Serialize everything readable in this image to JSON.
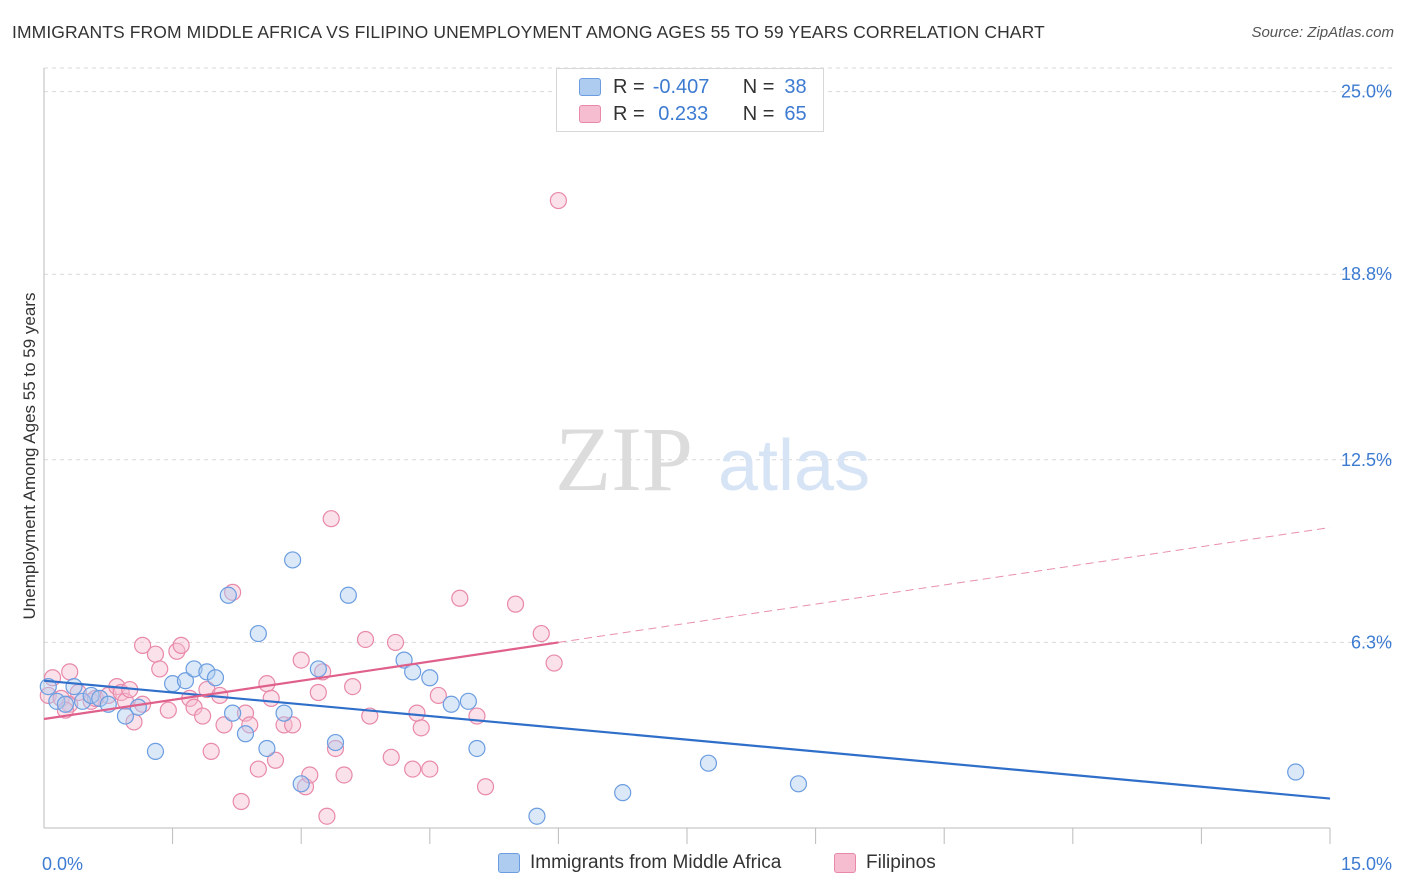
{
  "title": "IMMIGRANTS FROM MIDDLE AFRICA VS FILIPINO UNEMPLOYMENT AMONG AGES 55 TO 59 YEARS CORRELATION CHART",
  "source": "Source: ZipAtlas.com",
  "watermark": {
    "zip": "ZIP",
    "atlas": "atlas"
  },
  "legend": {
    "rows": [
      {
        "r_label": "R =",
        "r_value": "-0.407",
        "n_label": "N =",
        "n_value": "38"
      },
      {
        "r_label": "R =",
        "r_value": " 0.233",
        "n_label": "N =",
        "n_value": "65"
      }
    ]
  },
  "colors": {
    "blue_fill": "#aecbf0",
    "blue_stroke": "#6b9de0",
    "blue_line": "#2f6fc9",
    "pink_fill": "#f6bcd0",
    "pink_stroke": "#e889aa",
    "pink_line": "#e0608c",
    "tick_label": "#3d7bd1",
    "grid": "#d9d9d9"
  },
  "chart_data": {
    "type": "scatter",
    "title": "IMMIGRANTS FROM MIDDLE AFRICA VS FILIPINO UNEMPLOYMENT AMONG AGES 55 TO 59 YEARS CORRELATION CHART",
    "xlabel": "",
    "ylabel": "Unemployment Among Ages 55 to 59 years",
    "xlim": [
      0,
      15
    ],
    "ylim": [
      0,
      25.8
    ],
    "x_tick_labels": [
      "0.0%",
      "15.0%"
    ],
    "y_ticks": [
      6.3,
      12.5,
      18.8,
      25.0
    ],
    "y_tick_labels": [
      "6.3%",
      "12.5%",
      "18.8%",
      "25.0%"
    ],
    "grid": true,
    "legend_position": "bottom",
    "series": [
      {
        "name": "Immigrants from Middle Africa",
        "color": "#aecbf0",
        "r": -0.407,
        "n": 38,
        "trend": {
          "x0": 0,
          "y0": 5.0,
          "x1": 15,
          "y1": 1.0
        },
        "points": [
          [
            0.05,
            4.8
          ],
          [
            0.15,
            4.3
          ],
          [
            0.25,
            4.2
          ],
          [
            0.35,
            4.8
          ],
          [
            0.45,
            4.3
          ],
          [
            0.55,
            4.5
          ],
          [
            0.65,
            4.4
          ],
          [
            0.75,
            4.2
          ],
          [
            0.95,
            3.8
          ],
          [
            1.1,
            4.1
          ],
          [
            1.3,
            2.6
          ],
          [
            1.5,
            4.9
          ],
          [
            1.65,
            5.0
          ],
          [
            1.75,
            5.4
          ],
          [
            1.9,
            5.3
          ],
          [
            2.0,
            5.1
          ],
          [
            2.15,
            7.9
          ],
          [
            2.2,
            3.9
          ],
          [
            2.35,
            3.2
          ],
          [
            2.5,
            6.6
          ],
          [
            2.6,
            2.7
          ],
          [
            2.8,
            3.9
          ],
          [
            2.9,
            9.1
          ],
          [
            3.0,
            1.5
          ],
          [
            3.2,
            5.4
          ],
          [
            3.4,
            2.9
          ],
          [
            3.55,
            7.9
          ],
          [
            4.2,
            5.7
          ],
          [
            4.3,
            5.3
          ],
          [
            4.5,
            5.1
          ],
          [
            4.75,
            4.2
          ],
          [
            4.95,
            4.3
          ],
          [
            5.05,
            2.7
          ],
          [
            5.75,
            0.4
          ],
          [
            6.75,
            1.2
          ],
          [
            7.75,
            2.2
          ],
          [
            8.8,
            1.5
          ],
          [
            14.6,
            1.9
          ]
        ]
      },
      {
        "name": "Filipinos",
        "color": "#f6bcd0",
        "r": 0.233,
        "n": 65,
        "trend_solid": {
          "x0": 0,
          "y0": 3.7,
          "x1": 6.0,
          "y1": 6.3
        },
        "trend_dashed": {
          "x0": 6.0,
          "y0": 6.3,
          "x1": 15,
          "y1": 10.2
        },
        "points": [
          [
            0.05,
            4.5
          ],
          [
            0.2,
            4.4
          ],
          [
            0.3,
            4.2
          ],
          [
            0.3,
            5.3
          ],
          [
            0.4,
            4.6
          ],
          [
            0.55,
            4.3
          ],
          [
            0.6,
            4.4
          ],
          [
            0.75,
            4.5
          ],
          [
            0.85,
            4.8
          ],
          [
            0.9,
            4.6
          ],
          [
            0.95,
            4.3
          ],
          [
            1.0,
            4.7
          ],
          [
            1.05,
            3.6
          ],
          [
            1.15,
            4.2
          ],
          [
            1.15,
            6.2
          ],
          [
            1.3,
            5.9
          ],
          [
            1.35,
            5.4
          ],
          [
            1.45,
            4.0
          ],
          [
            1.55,
            6.0
          ],
          [
            1.6,
            6.2
          ],
          [
            1.7,
            4.4
          ],
          [
            1.75,
            4.1
          ],
          [
            1.85,
            3.8
          ],
          [
            1.9,
            4.7
          ],
          [
            1.95,
            2.6
          ],
          [
            2.05,
            4.5
          ],
          [
            2.1,
            3.5
          ],
          [
            2.2,
            8.0
          ],
          [
            2.3,
            0.9
          ],
          [
            2.35,
            3.9
          ],
          [
            2.4,
            3.5
          ],
          [
            2.5,
            2.0
          ],
          [
            2.6,
            4.9
          ],
          [
            2.65,
            4.4
          ],
          [
            2.7,
            2.3
          ],
          [
            2.8,
            3.5
          ],
          [
            2.9,
            3.5
          ],
          [
            3.0,
            5.7
          ],
          [
            3.05,
            1.4
          ],
          [
            3.1,
            1.8
          ],
          [
            3.2,
            4.6
          ],
          [
            3.25,
            5.3
          ],
          [
            3.3,
            0.4
          ],
          [
            3.35,
            10.5
          ],
          [
            3.4,
            2.7
          ],
          [
            3.5,
            1.8
          ],
          [
            3.6,
            4.8
          ],
          [
            3.75,
            6.4
          ],
          [
            3.8,
            3.8
          ],
          [
            4.05,
            2.4
          ],
          [
            4.1,
            6.3
          ],
          [
            4.3,
            2.0
          ],
          [
            4.35,
            3.9
          ],
          [
            4.4,
            3.4
          ],
          [
            4.5,
            2.0
          ],
          [
            4.6,
            4.5
          ],
          [
            4.85,
            7.8
          ],
          [
            5.05,
            3.8
          ],
          [
            5.15,
            1.4
          ],
          [
            5.5,
            7.6
          ],
          [
            5.8,
            6.6
          ],
          [
            5.95,
            5.6
          ],
          [
            6.0,
            21.3
          ],
          [
            0.1,
            5.1
          ],
          [
            0.25,
            4.0
          ]
        ]
      }
    ]
  }
}
